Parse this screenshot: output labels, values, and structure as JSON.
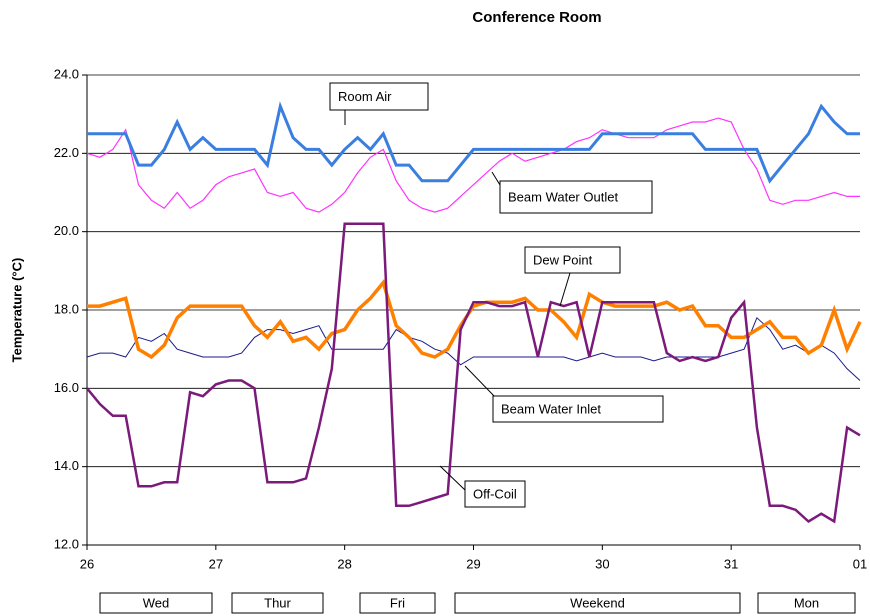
{
  "chart_data": {
    "type": "line",
    "title": "Conference Room",
    "y_label": "Temperature (°C)",
    "x": [
      26,
      26.1,
      26.2,
      26.3,
      26.4,
      26.5,
      26.6,
      26.7,
      26.8,
      26.9,
      27,
      27.1,
      27.2,
      27.3,
      27.4,
      27.5,
      27.6,
      27.7,
      27.8,
      27.9,
      28,
      28.1,
      28.2,
      28.3,
      28.4,
      28.5,
      28.6,
      28.7,
      28.8,
      28.9,
      29,
      29.1,
      29.2,
      29.3,
      29.4,
      29.5,
      29.6,
      29.7,
      29.8,
      29.9,
      30,
      30.1,
      30.2,
      30.3,
      30.4,
      30.5,
      30.6,
      30.7,
      30.8,
      30.9,
      31,
      31.1,
      31.2,
      31.3,
      31.4,
      31.5,
      31.6,
      31.7,
      31.8,
      31.9,
      32
    ],
    "series": [
      {
        "name": "Beam Water Outlet",
        "color": "#ff33ff",
        "width": 1.2,
        "values": [
          22.0,
          21.9,
          22.1,
          22.6,
          21.2,
          20.8,
          20.6,
          21.0,
          20.6,
          20.8,
          21.2,
          21.4,
          21.5,
          21.6,
          21.0,
          20.9,
          21.0,
          20.6,
          20.5,
          20.7,
          21.0,
          21.5,
          21.9,
          22.1,
          21.3,
          20.8,
          20.6,
          20.5,
          20.6,
          20.9,
          21.2,
          21.5,
          21.8,
          22.0,
          21.8,
          21.9,
          22.0,
          22.1,
          22.3,
          22.4,
          22.6,
          22.5,
          22.4,
          22.4,
          22.4,
          22.6,
          22.7,
          22.8,
          22.8,
          22.9,
          22.8,
          22.1,
          21.6,
          20.8,
          20.7,
          20.8,
          20.8,
          20.9,
          21.0,
          20.9,
          20.9
        ]
      },
      {
        "name": "Room Air",
        "color": "#3a7fe0",
        "width": 3,
        "values": [
          22.5,
          22.5,
          22.5,
          22.5,
          21.7,
          21.7,
          22.1,
          22.8,
          22.1,
          22.4,
          22.1,
          22.1,
          22.1,
          22.1,
          21.7,
          23.2,
          22.4,
          22.1,
          22.1,
          21.7,
          22.1,
          22.4,
          22.1,
          22.5,
          21.7,
          21.7,
          21.3,
          21.3,
          21.3,
          21.7,
          22.1,
          22.1,
          22.1,
          22.1,
          22.1,
          22.1,
          22.1,
          22.1,
          22.1,
          22.1,
          22.5,
          22.5,
          22.5,
          22.5,
          22.5,
          22.5,
          22.5,
          22.5,
          22.1,
          22.1,
          22.1,
          22.1,
          22.1,
          21.3,
          21.7,
          22.1,
          22.5,
          23.2,
          22.8,
          22.5,
          22.5
        ]
      },
      {
        "name": "Beam Water Inlet",
        "color": "#1a1a8c",
        "width": 1,
        "values": [
          16.8,
          16.9,
          16.9,
          16.8,
          17.3,
          17.2,
          17.4,
          17.0,
          16.9,
          16.8,
          16.8,
          16.8,
          16.9,
          17.3,
          17.5,
          17.5,
          17.4,
          17.5,
          17.6,
          17.0,
          17.0,
          17.0,
          17.0,
          17.0,
          17.5,
          17.3,
          17.2,
          17.0,
          16.9,
          16.6,
          16.8,
          16.8,
          16.8,
          16.8,
          16.8,
          16.8,
          16.8,
          16.8,
          16.7,
          16.8,
          16.9,
          16.8,
          16.8,
          16.8,
          16.7,
          16.8,
          16.8,
          16.8,
          16.8,
          16.8,
          16.9,
          17.0,
          17.8,
          17.5,
          17.0,
          17.1,
          16.9,
          17.1,
          16.9,
          16.5,
          16.2
        ]
      },
      {
        "name": "Dew Point",
        "color": "#ff8000",
        "width": 3.5,
        "values": [
          18.1,
          18.1,
          18.2,
          18.3,
          17.0,
          16.8,
          17.1,
          17.8,
          18.1,
          18.1,
          18.1,
          18.1,
          18.1,
          17.6,
          17.3,
          17.7,
          17.2,
          17.3,
          17.0,
          17.4,
          17.5,
          18.0,
          18.3,
          18.7,
          17.6,
          17.3,
          16.9,
          16.8,
          17.0,
          17.6,
          18.1,
          18.2,
          18.2,
          18.2,
          18.3,
          18.0,
          18.0,
          17.7,
          17.3,
          18.4,
          18.2,
          18.1,
          18.1,
          18.1,
          18.1,
          18.2,
          18.0,
          18.1,
          17.6,
          17.6,
          17.3,
          17.3,
          17.5,
          17.7,
          17.3,
          17.3,
          16.9,
          17.1,
          18.0,
          17.0,
          17.7
        ]
      },
      {
        "name": "Off-Coil",
        "color": "#7b1a7b",
        "width": 2.5,
        "values": [
          16.0,
          15.6,
          15.3,
          15.3,
          13.5,
          13.5,
          13.6,
          13.6,
          15.9,
          15.8,
          16.1,
          16.2,
          16.2,
          16.0,
          13.6,
          13.6,
          13.6,
          13.7,
          15.0,
          16.5,
          20.2,
          20.2,
          20.2,
          20.2,
          13.0,
          13.0,
          13.1,
          13.2,
          13.3,
          17.5,
          18.2,
          18.2,
          18.1,
          18.1,
          18.2,
          16.8,
          18.2,
          18.1,
          18.2,
          16.8,
          18.2,
          18.2,
          18.2,
          18.2,
          18.2,
          16.9,
          16.7,
          16.8,
          16.7,
          16.8,
          17.8,
          18.2,
          15.0,
          13.0,
          13.0,
          12.9,
          12.6,
          12.8,
          12.6,
          15.0,
          14.8
        ]
      }
    ],
    "xlim": [
      26,
      32
    ],
    "xticks": [
      26,
      27,
      28,
      29,
      30,
      31,
      {
        "value": 32,
        "label": "01"
      }
    ],
    "ylim": [
      12,
      24
    ],
    "yticks": [
      {
        "value": 12,
        "label": "12.0"
      },
      {
        "value": 14,
        "label": "14.0"
      },
      {
        "value": 16,
        "label": "16.0"
      },
      {
        "value": 18,
        "label": "18.0"
      },
      {
        "value": 20,
        "label": "20.0"
      },
      {
        "value": 22,
        "label": "22.0"
      },
      {
        "value": 24,
        "label": "24.0"
      }
    ],
    "grid": true,
    "period_labels": [
      "Wed",
      "Thur",
      "Fri",
      "Weekend",
      "Mon"
    ]
  }
}
